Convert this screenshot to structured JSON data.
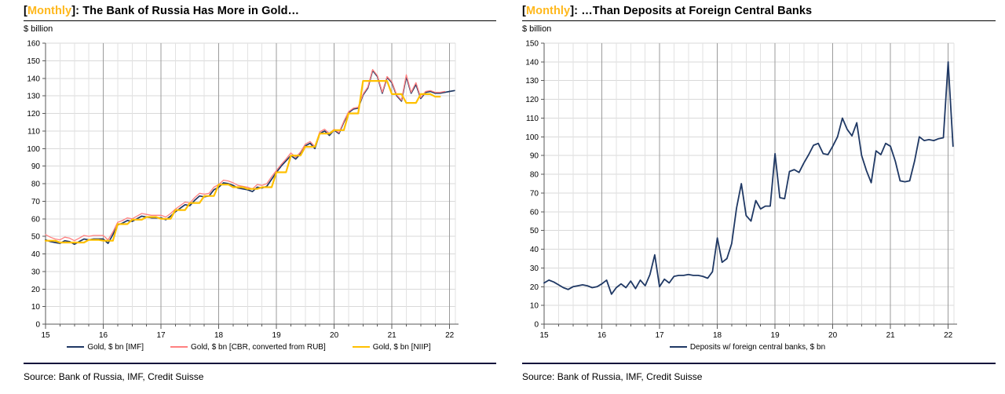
{
  "accent_color": "#FFB81C",
  "panels": [
    {
      "title_prefix": "[",
      "title_accent": "Monthly",
      "title_suffix": "]: The Bank of Russia Has More in Gold…",
      "unit_label": "$ billion",
      "source": "Source: Bank of Russia, IMF, Credit Suisse"
    },
    {
      "title_prefix": "[",
      "title_accent": "Monthly",
      "title_suffix": "]: …Than Deposits at Foreign Central Banks",
      "unit_label": "$ billion",
      "source": "Source: Bank of Russia, IMF, Credit Suisse"
    }
  ],
  "chart_data": [
    {
      "type": "line",
      "title": "[Monthly]: The Bank of Russia Has More in Gold…",
      "ylabel": "$ billion",
      "ylim": [
        0,
        160
      ],
      "ytick_step": 10,
      "xlim": [
        15,
        22.1
      ],
      "xticks": [
        15,
        16,
        17,
        18,
        19,
        20,
        21,
        22
      ],
      "minor_x_step": 0.25,
      "grid": true,
      "legend_position": "bottom",
      "x_unit": "decimal_year_monthly",
      "x_start": 15.0,
      "x_step": 0.0833333,
      "series": [
        {
          "name": "Gold, $ bn [IMF]",
          "color": "#1F3864",
          "width": 1.7,
          "values": [
            48,
            47,
            46.5,
            46,
            47.5,
            47,
            45.5,
            47,
            48.5,
            48,
            48.5,
            48.5,
            48.5,
            46,
            51,
            56.5,
            57.5,
            59,
            58.5,
            60,
            61.5,
            61,
            60.5,
            60.5,
            60.5,
            59.5,
            61.5,
            64,
            66,
            68,
            67.5,
            70.5,
            73,
            72.5,
            73,
            76.5,
            78,
            80.5,
            80,
            79,
            77.5,
            77,
            76.5,
            75.5,
            78,
            77.5,
            78.5,
            82.5,
            86.5,
            90,
            93,
            96,
            94,
            97,
            101.5,
            103,
            100,
            108.5,
            110,
            107.5,
            110.5,
            108.5,
            115,
            120.5,
            122.5,
            123,
            130.5,
            134.5,
            144.5,
            141,
            131.5,
            140.5,
            137.5,
            130,
            127,
            141,
            131.5,
            136.5,
            128.5,
            132,
            132.5,
            131.5,
            131.5,
            132,
            132.5,
            133
          ]
        },
        {
          "name": "Gold, $ bn [CBR, converted from RUB]",
          "color": "#FF8080",
          "width": 1.3,
          "values": [
            51,
            49.5,
            48.5,
            48,
            49.5,
            49,
            47.5,
            49,
            50.5,
            50,
            50.5,
            50.5,
            50.5,
            48,
            52.5,
            58,
            59,
            60.5,
            60,
            61.5,
            63,
            62.5,
            62,
            62,
            62,
            61,
            63,
            65.5,
            67.5,
            69.5,
            69,
            72,
            74.5,
            74,
            74.5,
            78,
            79.5,
            82,
            81.5,
            80.5,
            79,
            78.5,
            78,
            77,
            79.5,
            79,
            80,
            84,
            87.5,
            91,
            94,
            97.5,
            95,
            98,
            102.5,
            104,
            101,
            109.5,
            111,
            108.5,
            111,
            109,
            115.5,
            121,
            123,
            123.5,
            131,
            135,
            145,
            141.5,
            132,
            141,
            138,
            130.5,
            127.5,
            142,
            132,
            137.5,
            129,
            132.5,
            133,
            132,
            132,
            132.5
          ]
        },
        {
          "name": "Gold, $ bn [NIIP]",
          "color": "#FFC000",
          "width": 2.2,
          "values": [
            47.5,
            47.5,
            47.5,
            46.5,
            46.5,
            46.5,
            46.5,
            46.5,
            46.5,
            48,
            48,
            48,
            47.5,
            47.5,
            47.5,
            57,
            57,
            57,
            59.5,
            59.5,
            59.5,
            61,
            61,
            61,
            60,
            60,
            60,
            65,
            65,
            65,
            69,
            69,
            69,
            73,
            73,
            73,
            79.5,
            79.5,
            79.5,
            78,
            78,
            78,
            77,
            77,
            77,
            78,
            78,
            78,
            86.5,
            86.5,
            86.5,
            96,
            96,
            96,
            101,
            101,
            101,
            108.5,
            108.5,
            108.5,
            110.5,
            110.5,
            110.5,
            120,
            120,
            120,
            138.5,
            138.5,
            138.5,
            138.5,
            138.5,
            138.5,
            131,
            131,
            131,
            126,
            126,
            126,
            131,
            131,
            131,
            129.5,
            129.5
          ]
        }
      ]
    },
    {
      "type": "line",
      "title": "[Monthly]: …Than Deposits at Foreign Central Banks",
      "ylabel": "$ billion",
      "ylim": [
        0,
        150
      ],
      "ytick_step": 10,
      "xlim": [
        15,
        22.1
      ],
      "xticks": [
        15,
        16,
        17,
        18,
        19,
        20,
        21,
        22
      ],
      "minor_x_step": 0.25,
      "grid": true,
      "legend_position": "bottom",
      "x_unit": "decimal_year_monthly",
      "x_start": 15.0,
      "x_step": 0.0833333,
      "series": [
        {
          "name": "Deposits w/ foreign central banks, $ bn",
          "color": "#1F3864",
          "width": 1.8,
          "values": [
            22,
            23.5,
            22.5,
            21,
            19.5,
            18.5,
            20,
            20.5,
            21,
            20.5,
            19.5,
            20,
            21.5,
            23.5,
            16,
            19.5,
            21.5,
            19.5,
            23,
            19,
            23.5,
            20.5,
            26.5,
            37,
            20,
            24,
            22,
            25.5,
            26,
            26,
            26.5,
            26,
            26,
            25.5,
            24.5,
            28,
            46,
            33,
            35,
            43,
            62,
            75,
            58,
            55,
            66,
            61.5,
            63,
            63,
            91,
            67.5,
            67,
            81.5,
            82.5,
            81,
            86,
            90.5,
            95.5,
            96.5,
            91,
            90.5,
            95,
            100,
            110,
            104,
            100.5,
            107.5,
            90,
            82,
            75.5,
            92.5,
            90.5,
            96.5,
            95,
            87,
            76.5,
            76,
            76.5,
            87,
            100,
            98,
            98.5,
            98,
            99,
            99.5,
            140,
            95
          ]
        }
      ]
    }
  ],
  "style": {
    "grid_major_color": "#9B9B9B",
    "grid_minor_color": "#E2E2E2",
    "grid_h_color": "#D9D9D9",
    "axis_color": "#595959"
  }
}
